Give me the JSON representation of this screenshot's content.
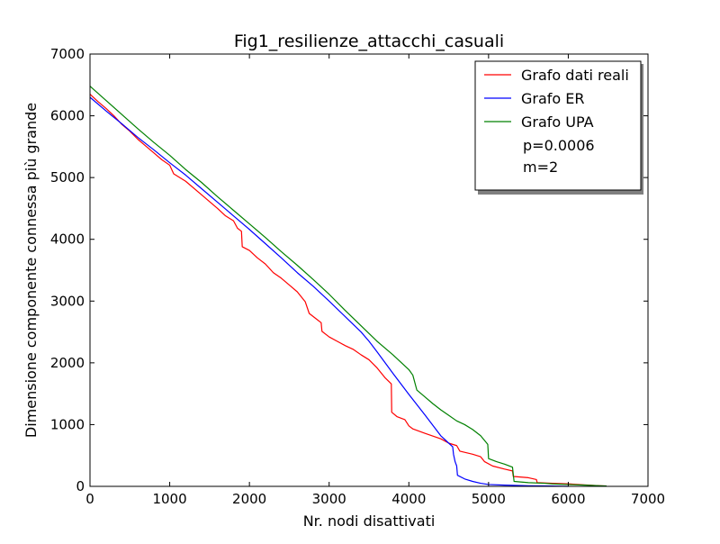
{
  "chart_data": {
    "type": "line",
    "title": "Fig1_resilienze_attacchi_casuali",
    "xlabel": "Nr. nodi disattivati",
    "ylabel": "Dimensione componente connessa più grande",
    "xlim": [
      0,
      7000
    ],
    "ylim": [
      0,
      7000
    ],
    "xticks": [
      0,
      1000,
      2000,
      3000,
      4000,
      5000,
      6000,
      7000
    ],
    "yticks": [
      0,
      1000,
      2000,
      3000,
      4000,
      5000,
      6000,
      7000
    ],
    "grid": false,
    "legend_position": "top-right",
    "series": [
      {
        "name": "Grafo dati reali",
        "color": "#ff0000",
        "points": [
          [
            0,
            6350
          ],
          [
            100,
            6230
          ],
          [
            200,
            6120
          ],
          [
            300,
            6000
          ],
          [
            400,
            5860
          ],
          [
            500,
            5750
          ],
          [
            600,
            5620
          ],
          [
            700,
            5510
          ],
          [
            800,
            5400
          ],
          [
            900,
            5290
          ],
          [
            1000,
            5200
          ],
          [
            1050,
            5060
          ],
          [
            1200,
            4940
          ],
          [
            1400,
            4720
          ],
          [
            1600,
            4500
          ],
          [
            1700,
            4380
          ],
          [
            1800,
            4300
          ],
          [
            1850,
            4180
          ],
          [
            1900,
            4130
          ],
          [
            1910,
            3880
          ],
          [
            2000,
            3820
          ],
          [
            2100,
            3700
          ],
          [
            2200,
            3600
          ],
          [
            2300,
            3460
          ],
          [
            2400,
            3370
          ],
          [
            2500,
            3260
          ],
          [
            2600,
            3150
          ],
          [
            2700,
            2990
          ],
          [
            2750,
            2800
          ],
          [
            2850,
            2700
          ],
          [
            2900,
            2650
          ],
          [
            2910,
            2510
          ],
          [
            3000,
            2420
          ],
          [
            3100,
            2350
          ],
          [
            3200,
            2280
          ],
          [
            3300,
            2220
          ],
          [
            3400,
            2130
          ],
          [
            3500,
            2050
          ],
          [
            3600,
            1920
          ],
          [
            3700,
            1760
          ],
          [
            3780,
            1660
          ],
          [
            3785,
            1200
          ],
          [
            3850,
            1130
          ],
          [
            3950,
            1080
          ],
          [
            4000,
            980
          ],
          [
            4050,
            930
          ],
          [
            4200,
            860
          ],
          [
            4400,
            770
          ],
          [
            4500,
            700
          ],
          [
            4600,
            660
          ],
          [
            4640,
            570
          ],
          [
            4800,
            520
          ],
          [
            4900,
            480
          ],
          [
            4950,
            400
          ],
          [
            5050,
            330
          ],
          [
            5200,
            280
          ],
          [
            5300,
            250
          ],
          [
            5310,
            160
          ],
          [
            5500,
            140
          ],
          [
            5600,
            110
          ],
          [
            5610,
            60
          ],
          [
            5800,
            50
          ],
          [
            6000,
            40
          ],
          [
            6200,
            25
          ],
          [
            6400,
            10
          ],
          [
            6480,
            5
          ]
        ]
      },
      {
        "name": "Grafo ER",
        "color": "#0000ff",
        "points": [
          [
            0,
            6300
          ],
          [
            200,
            6080
          ],
          [
            400,
            5870
          ],
          [
            600,
            5650
          ],
          [
            800,
            5450
          ],
          [
            1000,
            5240
          ],
          [
            1200,
            5040
          ],
          [
            1400,
            4820
          ],
          [
            1600,
            4600
          ],
          [
            1800,
            4380
          ],
          [
            2000,
            4160
          ],
          [
            2200,
            3930
          ],
          [
            2400,
            3700
          ],
          [
            2600,
            3460
          ],
          [
            2800,
            3240
          ],
          [
            3000,
            3000
          ],
          [
            3200,
            2750
          ],
          [
            3400,
            2500
          ],
          [
            3500,
            2350
          ],
          [
            3600,
            2180
          ],
          [
            3800,
            1830
          ],
          [
            4000,
            1490
          ],
          [
            4200,
            1160
          ],
          [
            4300,
            990
          ],
          [
            4400,
            820
          ],
          [
            4500,
            700
          ],
          [
            4550,
            640
          ],
          [
            4560,
            520
          ],
          [
            4580,
            400
          ],
          [
            4600,
            330
          ],
          [
            4610,
            180
          ],
          [
            4700,
            120
          ],
          [
            4800,
            80
          ],
          [
            4900,
            50
          ],
          [
            5000,
            30
          ],
          [
            5200,
            20
          ],
          [
            5500,
            10
          ],
          [
            5800,
            5
          ],
          [
            6000,
            0
          ]
        ]
      },
      {
        "name": "Grafo UPA",
        "color": "#008000",
        "points": [
          [
            0,
            6480
          ],
          [
            200,
            6250
          ],
          [
            400,
            6020
          ],
          [
            600,
            5790
          ],
          [
            800,
            5570
          ],
          [
            1000,
            5360
          ],
          [
            1200,
            5130
          ],
          [
            1400,
            4920
          ],
          [
            1600,
            4690
          ],
          [
            1800,
            4470
          ],
          [
            2000,
            4250
          ],
          [
            2200,
            4030
          ],
          [
            2400,
            3800
          ],
          [
            2600,
            3580
          ],
          [
            2800,
            3350
          ],
          [
            3000,
            3110
          ],
          [
            3200,
            2850
          ],
          [
            3400,
            2600
          ],
          [
            3600,
            2350
          ],
          [
            3800,
            2130
          ],
          [
            4000,
            1890
          ],
          [
            4050,
            1800
          ],
          [
            4100,
            1560
          ],
          [
            4200,
            1450
          ],
          [
            4300,
            1340
          ],
          [
            4400,
            1240
          ],
          [
            4500,
            1150
          ],
          [
            4600,
            1060
          ],
          [
            4700,
            1000
          ],
          [
            4800,
            920
          ],
          [
            4900,
            820
          ],
          [
            4990,
            680
          ],
          [
            5000,
            450
          ],
          [
            5100,
            400
          ],
          [
            5200,
            360
          ],
          [
            5300,
            310
          ],
          [
            5320,
            80
          ],
          [
            5500,
            60
          ],
          [
            5700,
            50
          ],
          [
            5800,
            40
          ],
          [
            6000,
            30
          ],
          [
            6200,
            20
          ],
          [
            6400,
            10
          ],
          [
            6480,
            5
          ]
        ]
      }
    ],
    "legend_extra": [
      "p=0.0006",
      "m=2"
    ]
  }
}
